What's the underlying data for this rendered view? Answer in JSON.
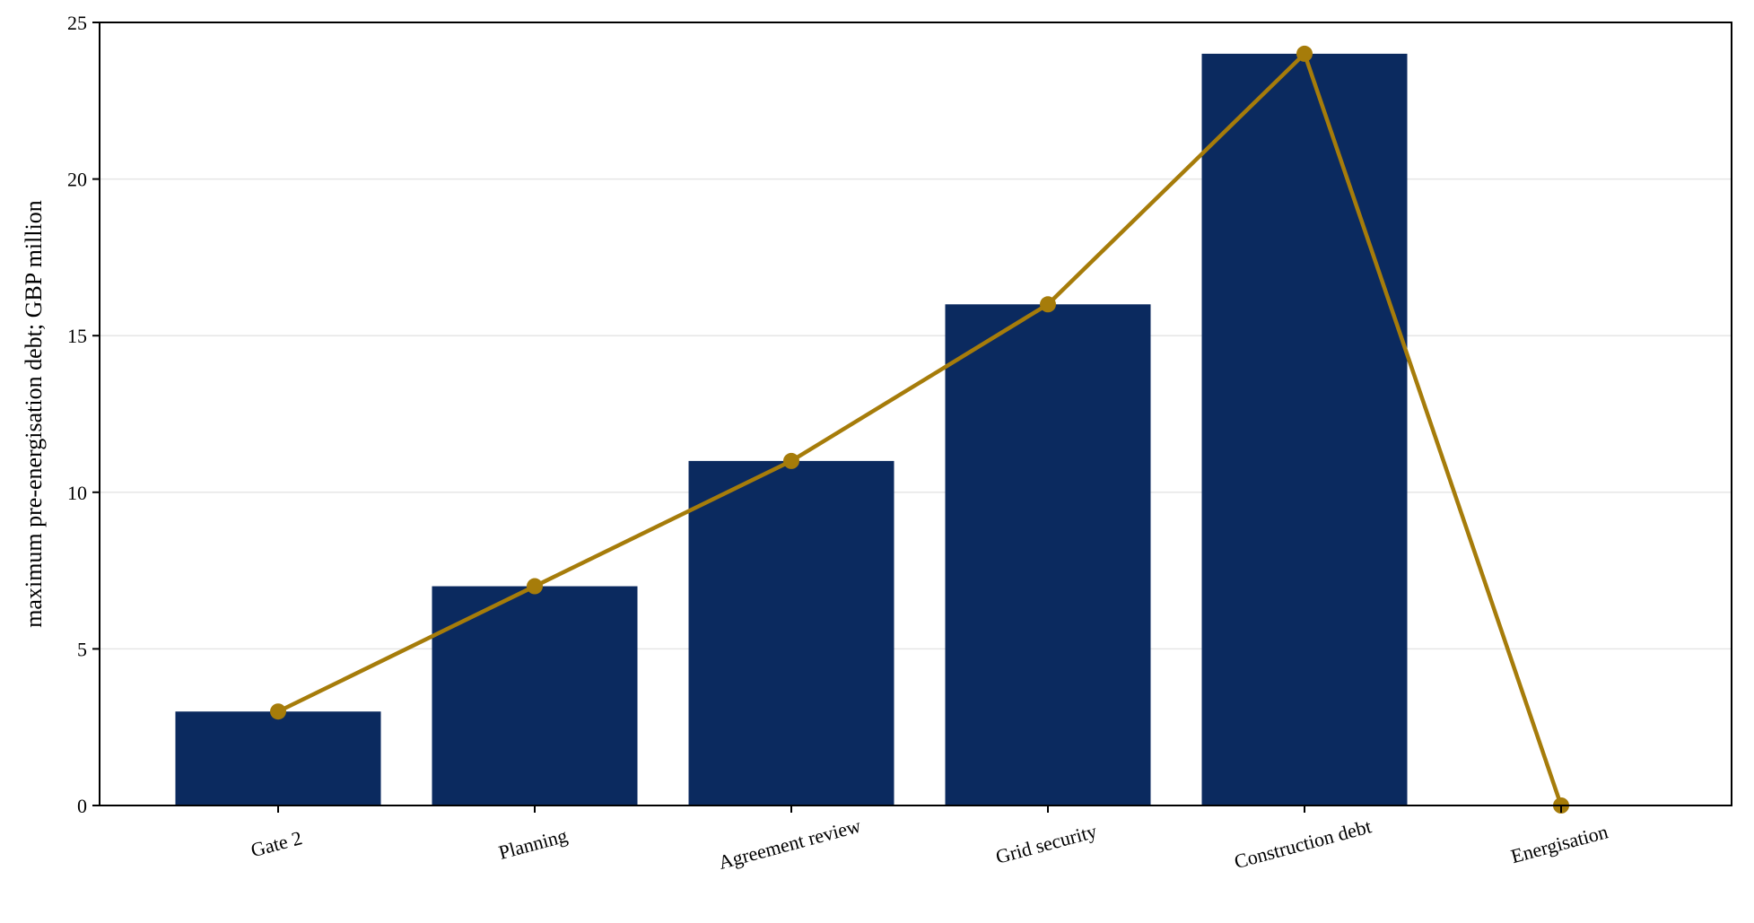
{
  "chart_data": {
    "type": "bar",
    "categories": [
      "Gate 2",
      "Planning",
      "Agreement review",
      "Grid security",
      "Construction debt",
      "Energisation"
    ],
    "series": [
      {
        "type": "bar",
        "values": [
          3,
          7,
          11,
          16,
          24,
          null
        ],
        "color": "#0b2a5f"
      },
      {
        "type": "line",
        "values": [
          3,
          7,
          11,
          16,
          24,
          0
        ],
        "color": "#a67c0a",
        "marker": "circle"
      }
    ],
    "title": "",
    "xlabel": "",
    "ylabel": "maximum pre-energisation debt; GBP million",
    "ylim": [
      0,
      25
    ],
    "yticks": [
      0,
      5,
      10,
      15,
      20,
      25
    ],
    "ytick_labels": [
      "0",
      "5",
      "10",
      "15",
      "20",
      "25"
    ],
    "grid": "horizontal",
    "legend": "none"
  }
}
